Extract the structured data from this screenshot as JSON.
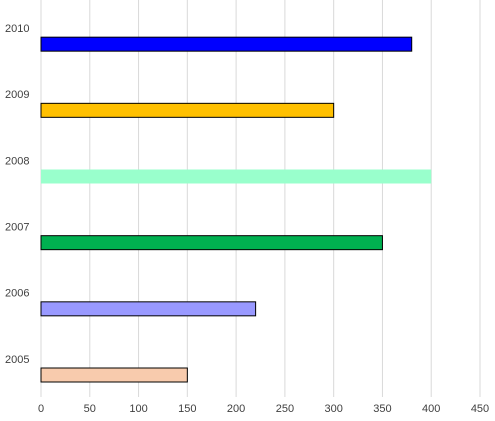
{
  "chart_data": {
    "type": "barh",
    "categories": [
      "2005",
      "2006",
      "2007",
      "2008",
      "2009",
      "2010"
    ],
    "values": [
      150,
      220,
      350,
      400,
      300,
      380
    ],
    "colors": [
      "#f8cbad",
      "#9999ff",
      "#00b050",
      "#99ffcc",
      "#ffc000",
      "#0000ff"
    ],
    "edgecolors": [
      "#000000",
      "#000000",
      "#000000",
      null,
      "#000000",
      "#000000"
    ],
    "xlim": [
      0,
      450
    ],
    "xticks": [
      0,
      50,
      100,
      150,
      200,
      250,
      300,
      350,
      400,
      450
    ],
    "grid": true
  }
}
